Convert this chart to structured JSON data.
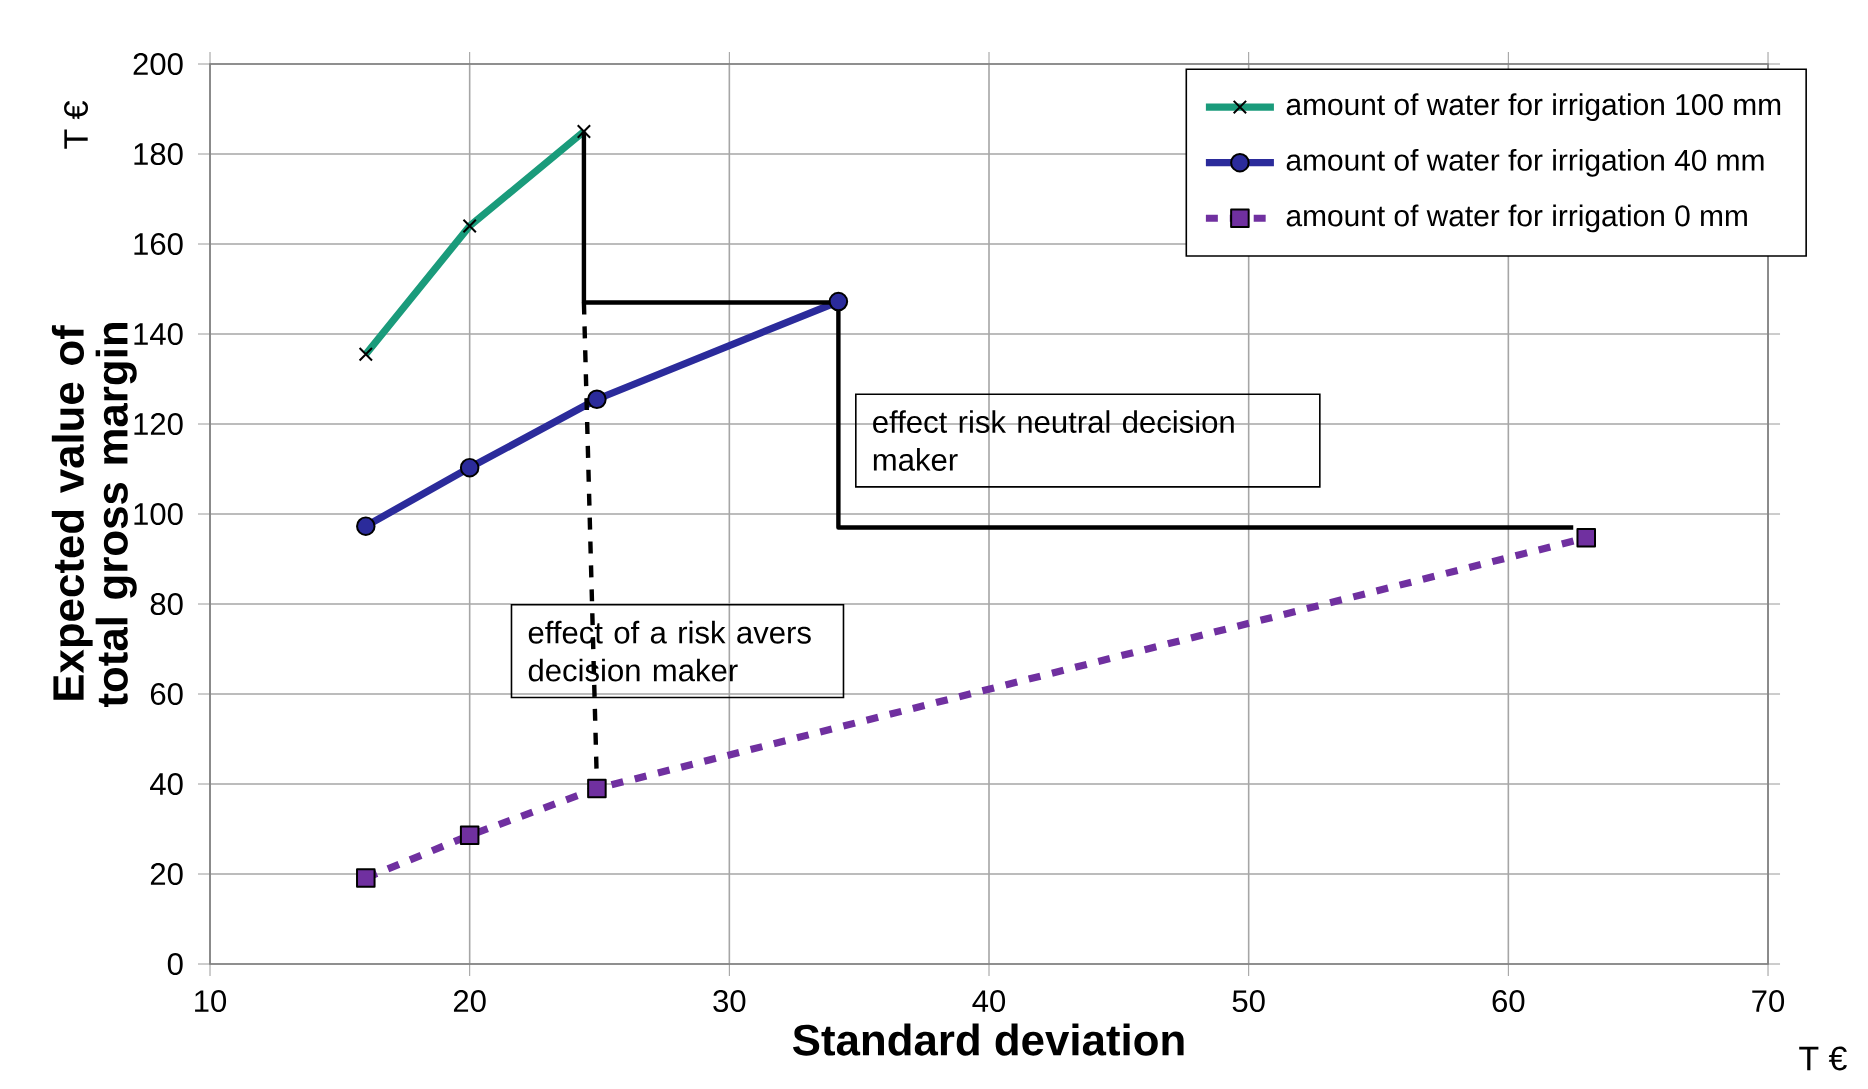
{
  "chart_data": {
    "type": "line",
    "xlabel": "Standard deviation",
    "ylabel": "Expected value of total gross margin",
    "xlim": [
      10,
      70
    ],
    "ylim": [
      0,
      200
    ],
    "xticks": [
      10,
      20,
      30,
      40,
      50,
      60,
      70
    ],
    "yticks": [
      0,
      20,
      40,
      60,
      80,
      100,
      120,
      140,
      160,
      180,
      200
    ],
    "grid": true,
    "legend": "top right",
    "series": [
      {
        "name": "amount of water for irrigation 100 mm",
        "color": "#1a9b7b",
        "marker": "cross",
        "line_style": "solid",
        "x": [
          16,
          20,
          24.4
        ],
        "values": [
          135.5,
          164,
          185
        ]
      },
      {
        "name": "amount of water for irrigation 40 mm",
        "color": "#2b2b9b",
        "marker": "circle",
        "line_style": "solid",
        "x": [
          16,
          20,
          24.9,
          34.2
        ],
        "values": [
          97.3,
          110.3,
          125.5,
          147.2
        ]
      },
      {
        "name": "amount of water for irrigation 0 mm",
        "color": "#7030a0",
        "marker": "square",
        "line_style": "dashed",
        "x": [
          16,
          20,
          24.9,
          63
        ],
        "values": [
          19.1,
          28.6,
          39,
          94.7
        ]
      },
      {
        "color": "#000000",
        "marker": "none",
        "line_style": "solid",
        "x": [
          24.4,
          24.4,
          34.2
        ],
        "values": [
          185,
          147,
          147
        ]
      },
      {
        "color": "#000000",
        "marker": "none",
        "line_style": "solid",
        "x": [
          34.2,
          34.2,
          62.5
        ],
        "values": [
          147,
          97,
          97
        ]
      },
      {
        "color": "#000000",
        "marker": "none",
        "line_style": "dashed",
        "x": [
          24.4,
          24.9
        ],
        "values": [
          147,
          40
        ]
      }
    ],
    "annotations": [
      "effect risk neutral decision maker",
      "effect of a risk avers decision maker",
      "T €",
      "T €"
    ]
  }
}
